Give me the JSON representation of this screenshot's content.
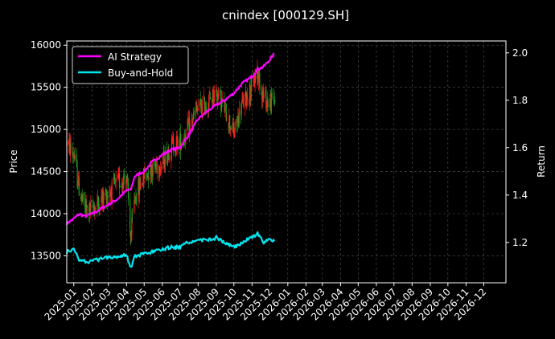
{
  "chart_data": {
    "type": "line",
    "title": "cnindex [000129.SH]",
    "xlabel": "",
    "ylabel_left": "Price",
    "ylabel_right": "Return",
    "x_ticks": [
      "2025-01",
      "2025-02",
      "2025-03",
      "2025-04",
      "2025-05",
      "2025-06",
      "2025-07",
      "2025-08",
      "2025-09",
      "2025-10",
      "2025-11",
      "2025-12",
      "2026-01",
      "2026-02",
      "2026-03",
      "2026-04",
      "2026-05",
      "2026-06",
      "2026-07",
      "2026-08",
      "2026-09",
      "2026-10",
      "2026-11",
      "2026-12"
    ],
    "xlim": [
      "2024-12-20",
      "2027-01-08"
    ],
    "ylim_left": [
      13180,
      16050
    ],
    "ylim_right": [
      1.03,
      2.05
    ],
    "y_ticks_left": [
      13500,
      14000,
      14500,
      15000,
      15500,
      16000
    ],
    "y_ticks_right": [
      1.2,
      1.4,
      1.6,
      1.8,
      2.0
    ],
    "grid": true,
    "legend_position": "top-left",
    "colors": {
      "background": "#000000",
      "ai_strategy": "#ff00ff",
      "buy_and_hold": "#00e5ee",
      "candle_up": "#ff2020",
      "candle_down": "#1f9d1f",
      "grid": "#555555"
    },
    "series": [
      {
        "name": "AI Strategy",
        "axis": "right",
        "x": [
          "2024-12-20",
          "2025-01-01",
          "2025-01-10",
          "2025-01-20",
          "2025-02-01",
          "2025-02-15",
          "2025-03-01",
          "2025-03-15",
          "2025-04-01",
          "2025-04-08",
          "2025-04-15",
          "2025-05-01",
          "2025-05-15",
          "2025-06-01",
          "2025-06-15",
          "2025-07-01",
          "2025-07-15",
          "2025-08-01",
          "2025-08-15",
          "2025-09-01",
          "2025-09-15",
          "2025-10-01",
          "2025-10-15",
          "2025-11-01",
          "2025-11-10",
          "2025-11-20",
          "2025-12-01",
          "2025-12-10"
        ],
        "values": [
          1.28,
          1.3,
          1.32,
          1.31,
          1.32,
          1.34,
          1.36,
          1.38,
          1.42,
          1.42,
          1.48,
          1.5,
          1.54,
          1.57,
          1.59,
          1.6,
          1.65,
          1.72,
          1.75,
          1.78,
          1.8,
          1.83,
          1.87,
          1.9,
          1.93,
          1.94,
          1.97,
          2.0
        ]
      },
      {
        "name": "Buy-and-Hold",
        "axis": "right",
        "x": [
          "2024-12-20",
          "2025-01-01",
          "2025-01-10",
          "2025-01-20",
          "2025-02-01",
          "2025-02-15",
          "2025-03-01",
          "2025-03-15",
          "2025-04-01",
          "2025-04-08",
          "2025-04-15",
          "2025-05-01",
          "2025-05-15",
          "2025-06-01",
          "2025-06-15",
          "2025-07-01",
          "2025-07-15",
          "2025-08-01",
          "2025-08-15",
          "2025-09-01",
          "2025-09-15",
          "2025-10-01",
          "2025-10-15",
          "2025-11-01",
          "2025-11-10",
          "2025-11-20",
          "2025-12-01",
          "2025-12-10"
        ],
        "values": [
          1.16,
          1.17,
          1.13,
          1.12,
          1.12,
          1.13,
          1.14,
          1.14,
          1.15,
          1.09,
          1.14,
          1.15,
          1.16,
          1.17,
          1.18,
          1.18,
          1.2,
          1.21,
          1.21,
          1.22,
          1.2,
          1.18,
          1.2,
          1.22,
          1.24,
          1.2,
          1.21,
          1.21
        ]
      }
    ],
    "price_path": {
      "x": [
        "2024-12-20",
        "2025-01-01",
        "2025-01-10",
        "2025-01-20",
        "2025-02-01",
        "2025-02-15",
        "2025-03-01",
        "2025-03-15",
        "2025-04-01",
        "2025-04-08",
        "2025-04-15",
        "2025-05-01",
        "2025-05-15",
        "2025-06-01",
        "2025-06-15",
        "2025-07-01",
        "2025-07-15",
        "2025-08-01",
        "2025-08-15",
        "2025-09-01",
        "2025-09-15",
        "2025-10-01",
        "2025-10-15",
        "2025-11-01",
        "2025-11-10",
        "2025-11-20",
        "2025-12-01",
        "2025-12-10"
      ],
      "values": [
        14850,
        14700,
        14300,
        14050,
        14050,
        14150,
        14250,
        14350,
        14450,
        13700,
        14200,
        14450,
        14550,
        14600,
        14800,
        14850,
        15000,
        15250,
        15300,
        15450,
        15250,
        14950,
        15300,
        15500,
        15700,
        15400,
        15300,
        15380
      ]
    }
  }
}
